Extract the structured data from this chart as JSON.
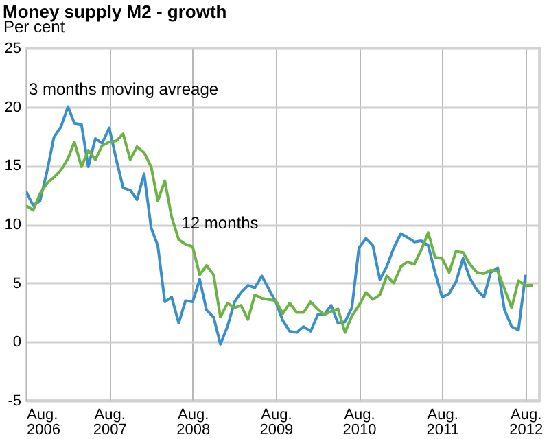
{
  "chart_data": {
    "type": "line",
    "title": "Money supply M2 - growth",
    "ylabel": "Per cent",
    "x": [
      "2006-08",
      "2006-09",
      "2006-10",
      "2006-11",
      "2006-12",
      "2007-01",
      "2007-02",
      "2007-03",
      "2007-04",
      "2007-05",
      "2007-06",
      "2007-07",
      "2007-08",
      "2007-09",
      "2007-10",
      "2007-11",
      "2007-12",
      "2008-01",
      "2008-02",
      "2008-03",
      "2008-04",
      "2008-05",
      "2008-06",
      "2008-07",
      "2008-08",
      "2008-09",
      "2008-10",
      "2008-11",
      "2008-12",
      "2009-01",
      "2009-02",
      "2009-03",
      "2009-04",
      "2009-05",
      "2009-06",
      "2009-07",
      "2009-08",
      "2009-09",
      "2009-10",
      "2009-11",
      "2009-12",
      "2010-01",
      "2010-02",
      "2010-03",
      "2010-04",
      "2010-05",
      "2010-06",
      "2010-07",
      "2010-08",
      "2010-09",
      "2010-10",
      "2010-11",
      "2010-12",
      "2011-01",
      "2011-02",
      "2011-03",
      "2011-04",
      "2011-05",
      "2011-06",
      "2011-07",
      "2011-08",
      "2011-09",
      "2011-10",
      "2011-11",
      "2011-12",
      "2012-01",
      "2012-02",
      "2012-03",
      "2012-04",
      "2012-05",
      "2012-06",
      "2012-07",
      "2012-08",
      "2012-09"
    ],
    "series": [
      {
        "name": "3 months moving avreage",
        "color": "#3a8fc9",
        "values": [
          12.8,
          11.6,
          12.0,
          14.5,
          17.4,
          18.3,
          20.0,
          18.6,
          18.5,
          14.9,
          17.3,
          16.9,
          18.2,
          15.5,
          13.1,
          12.9,
          12.1,
          14.3,
          9.7,
          8.2,
          3.4,
          3.8,
          1.6,
          3.5,
          3.4,
          5.3,
          2.7,
          2.1,
          -0.2,
          1.3,
          3.4,
          4.2,
          4.8,
          4.6,
          5.6,
          4.5,
          3.4,
          1.8,
          0.9,
          0.8,
          1.3,
          0.9,
          2.3,
          2.3,
          3.1,
          1.6,
          1.7,
          2.9,
          8.0,
          8.8,
          8.2,
          5.3,
          6.4,
          8.0,
          9.2,
          8.9,
          8.5,
          8.6,
          8.2,
          5.9,
          3.8,
          4.1,
          5.1,
          7.1,
          5.4,
          4.4,
          3.8,
          5.9,
          6.3,
          2.7,
          1.3,
          1.0,
          5.7,
          null
        ]
      },
      {
        "name": "12 months",
        "color": "#6ab344",
        "values": [
          11.6,
          11.2,
          12.6,
          13.5,
          14.0,
          14.6,
          15.6,
          17.0,
          14.9,
          16.3,
          15.5,
          16.7,
          17.0,
          17.1,
          17.7,
          15.5,
          16.6,
          16.1,
          14.9,
          12.0,
          13.7,
          10.6,
          8.7,
          8.3,
          8.1,
          5.7,
          6.5,
          5.7,
          2.1,
          3.3,
          2.9,
          3.1,
          1.9,
          4.0,
          3.7,
          3.6,
          3.5,
          2.4,
          3.3,
          2.5,
          2.5,
          3.4,
          2.8,
          2.3,
          2.6,
          2.8,
          0.8,
          2.2,
          3.1,
          4.2,
          3.6,
          4.0,
          5.6,
          5.0,
          6.4,
          6.8,
          6.6,
          7.8,
          9.3,
          7.2,
          7.1,
          5.9,
          7.7,
          7.6,
          6.6,
          5.9,
          5.8,
          6.1,
          6.0,
          4.5,
          2.9,
          5.2,
          4.8,
          4.8
        ]
      }
    ],
    "xlim": [
      "2006-08",
      "2012-10"
    ],
    "xticks": [
      {
        "value": "2006-08",
        "label": "Aug. 2006"
      },
      {
        "value": "2007-08",
        "label": "Aug. 2007"
      },
      {
        "value": "2008-08",
        "label": "Aug. 2008"
      },
      {
        "value": "2009-08",
        "label": "Aug. 2009"
      },
      {
        "value": "2010-08",
        "label": "Aug. 2010"
      },
      {
        "value": "2011-08",
        "label": "Aug. 2011"
      },
      {
        "value": "2012-08",
        "label": "Aug. 2012"
      }
    ],
    "ylim": [
      -5,
      25
    ],
    "yticks": [
      -5,
      0,
      5,
      10,
      15,
      20,
      25
    ],
    "grid": true
  }
}
